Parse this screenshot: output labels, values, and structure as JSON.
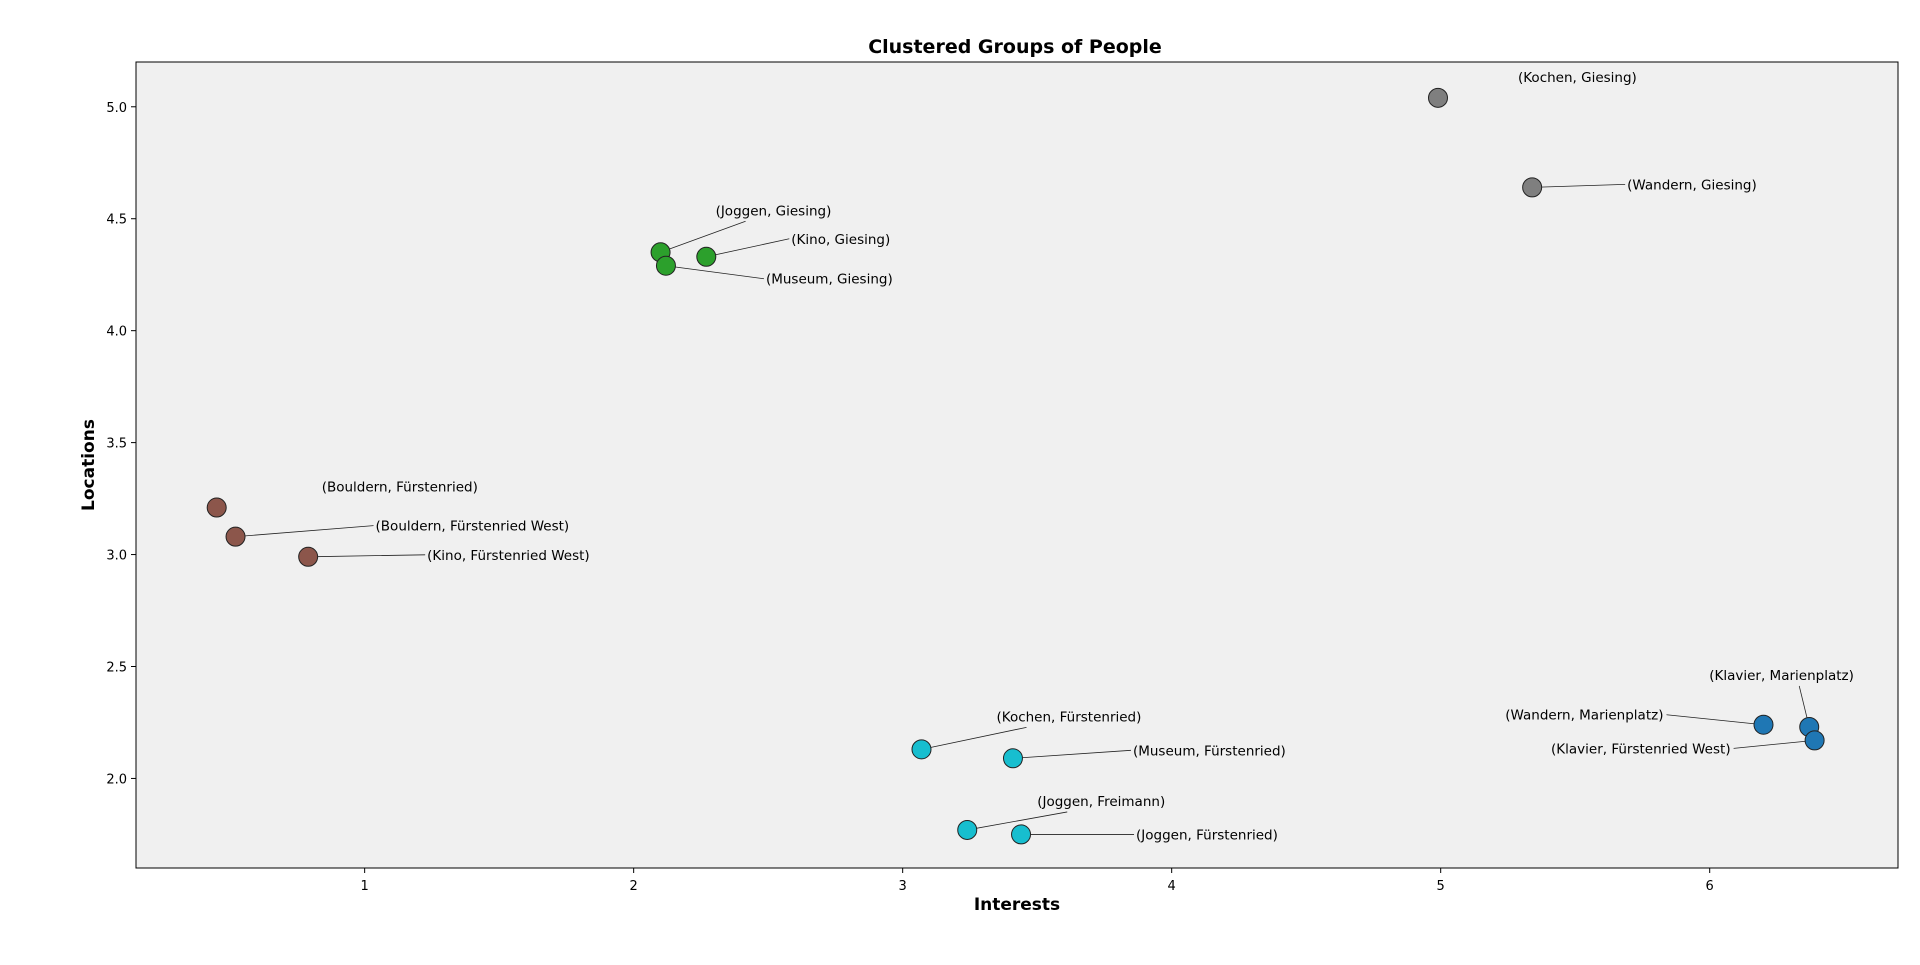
{
  "chart_data": {
    "type": "scatter",
    "title": "Clustered Groups of People",
    "xlabel": "Interests",
    "ylabel": "Locations",
    "xlim": [
      0.15,
      6.7
    ],
    "ylim": [
      1.6,
      5.2
    ],
    "xticks": [
      1,
      2,
      3,
      4,
      5,
      6
    ],
    "yticks": [
      2.0,
      2.5,
      3.0,
      3.5,
      4.0,
      4.5,
      5.0
    ],
    "grid": false,
    "legend": "none",
    "plot_background": "#f0f0f0",
    "points": [
      {
        "label": "(Kochen, Giesing)",
        "x": 4.99,
        "y": 5.04,
        "color": "#7f7f7f"
      },
      {
        "label": "(Wandern, Giesing)",
        "x": 5.34,
        "y": 4.64,
        "color": "#7f7f7f"
      },
      {
        "label": "(Joggen, Giesing)",
        "x": 2.1,
        "y": 4.35,
        "color": "#2ca02c"
      },
      {
        "label": "(Kino, Giesing)",
        "x": 2.27,
        "y": 4.33,
        "color": "#2ca02c"
      },
      {
        "label": "(Museum, Giesing)",
        "x": 2.12,
        "y": 4.29,
        "color": "#2ca02c"
      },
      {
        "label": "(Bouldern, Fürstenried)",
        "x": 0.45,
        "y": 3.21,
        "color": "#8c564b"
      },
      {
        "label": "(Bouldern, Fürstenried West)",
        "x": 0.52,
        "y": 3.08,
        "color": "#8c564b"
      },
      {
        "label": "(Kino, Fürstenried West)",
        "x": 0.79,
        "y": 2.99,
        "color": "#8c564b"
      },
      {
        "label": "(Kochen, Fürstenried)",
        "x": 3.07,
        "y": 2.13,
        "color": "#17becf"
      },
      {
        "label": "(Museum, Fürstenried)",
        "x": 3.41,
        "y": 2.09,
        "color": "#17becf"
      },
      {
        "label": "(Joggen, Freimann)",
        "x": 3.24,
        "y": 1.77,
        "color": "#17becf"
      },
      {
        "label": "(Joggen, Fürstenried)",
        "x": 3.44,
        "y": 1.75,
        "color": "#17becf"
      },
      {
        "label": "(Klavier, Marienplatz)",
        "x": 6.37,
        "y": 2.23,
        "color": "#1f77b4"
      },
      {
        "label": "(Wandern, Marienplatz)",
        "x": 6.2,
        "y": 2.24,
        "color": "#1f77b4"
      },
      {
        "label": "(Klavier, Fürstenried West)",
        "x": 6.39,
        "y": 2.17,
        "color": "#1f77b4"
      }
    ]
  }
}
